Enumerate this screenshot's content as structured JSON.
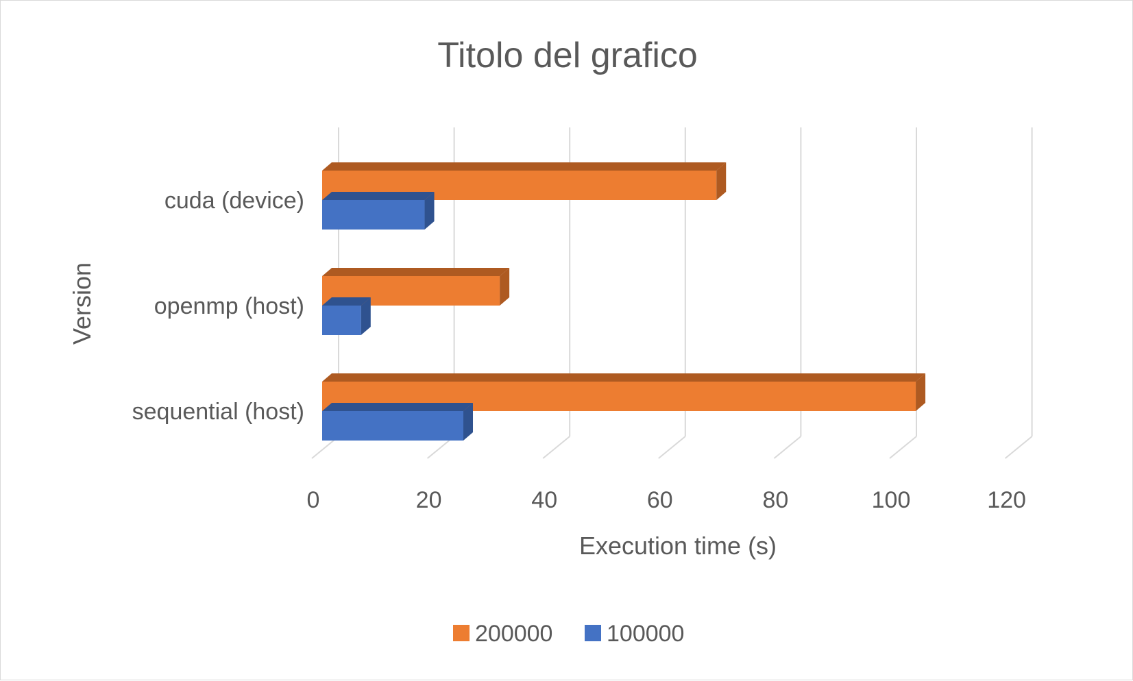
{
  "chart_data": {
    "type": "bar",
    "orientation": "horizontal",
    "style": "3d-clustered",
    "title": "Titolo del grafico",
    "xlabel": "Execution time (s)",
    "ylabel": "Version",
    "categories": [
      "cuda (device)",
      "openmp (host)",
      "sequential (host)"
    ],
    "series": [
      {
        "name": "200000",
        "values": [
          68,
          30.5,
          102.5
        ],
        "color": "#ED7D31",
        "side_color": "#AE5A21"
      },
      {
        "name": "100000",
        "values": [
          17.5,
          6.5,
          24.2
        ],
        "color": "#4472C4",
        "side_color": "#2F528F"
      }
    ],
    "xlim": [
      0,
      120
    ],
    "xticks": [
      "0",
      "20",
      "40",
      "60",
      "80",
      "100",
      "120"
    ],
    "grid": true,
    "legend_position": "bottom"
  }
}
